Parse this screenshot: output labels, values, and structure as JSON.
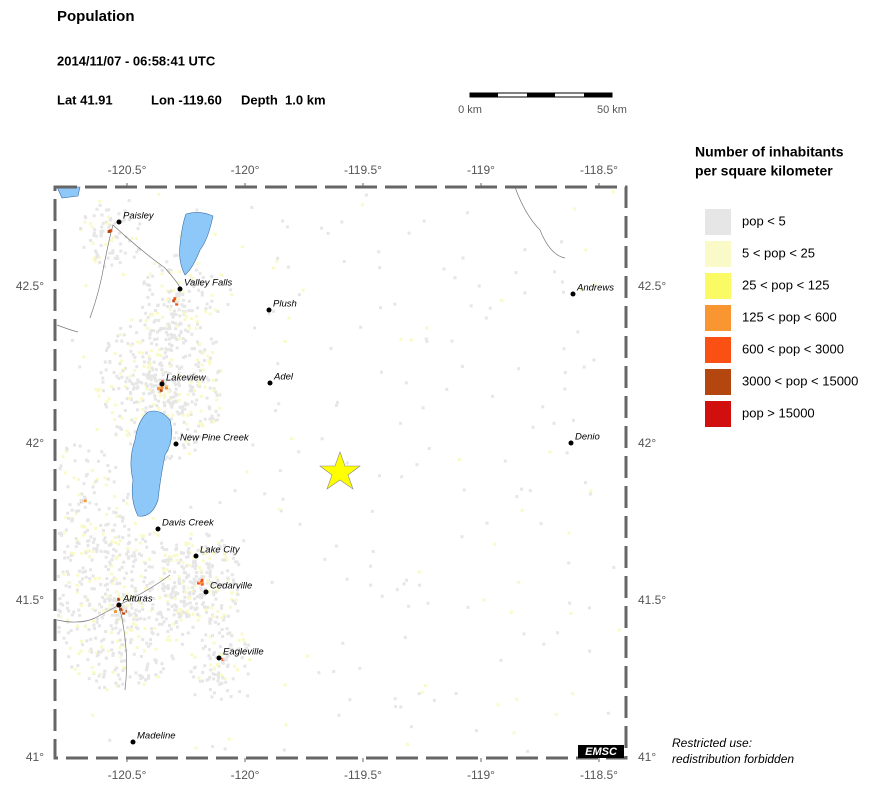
{
  "header": {
    "title": "Population",
    "datetime": "2014/11/07 - 06:58:41 UTC",
    "lat": "Lat 41.91",
    "lon": "Lon -119.60",
    "depth": "Depth  1.0 km"
  },
  "scale_bar": {
    "start_label": "0 km",
    "end_label": "50 km"
  },
  "map": {
    "lon_ticks": [
      "-120.5°",
      "-120°",
      "-119.5°",
      "-119°",
      "-118.5°"
    ],
    "lat_ticks": [
      "42.5°",
      "42°",
      "41.5°",
      "41°"
    ],
    "cities": [
      "Paisley",
      "Valley Falls",
      "Plush",
      "Lakeview",
      "Adel",
      "New Pine Creek",
      "Davis Creek",
      "Lake City",
      "Cedarville",
      "Alturas",
      "Eagleville",
      "Madeline",
      "Andrews",
      "Denio"
    ],
    "logo": "EMSC"
  },
  "legend": {
    "title_line1": "Number of inhabitants",
    "title_line2": "per square kilometer",
    "items": [
      {
        "label": "pop < 5",
        "color": "#e6e6e6"
      },
      {
        "label": "5 < pop < 25",
        "color": "#fafac8"
      },
      {
        "label": "25 < pop < 125",
        "color": "#fafa64"
      },
      {
        "label": "125 < pop < 600",
        "color": "#fa9632"
      },
      {
        "label": "600 < pop < 3000",
        "color": "#fa5014"
      },
      {
        "label": "3000 < pop < 15000",
        "color": "#b4460f"
      },
      {
        "label": "pop > 15000",
        "color": "#d20f0f"
      }
    ]
  },
  "notice": {
    "line1": "Restricted use:",
    "line2": "redistribution forbidden"
  }
}
